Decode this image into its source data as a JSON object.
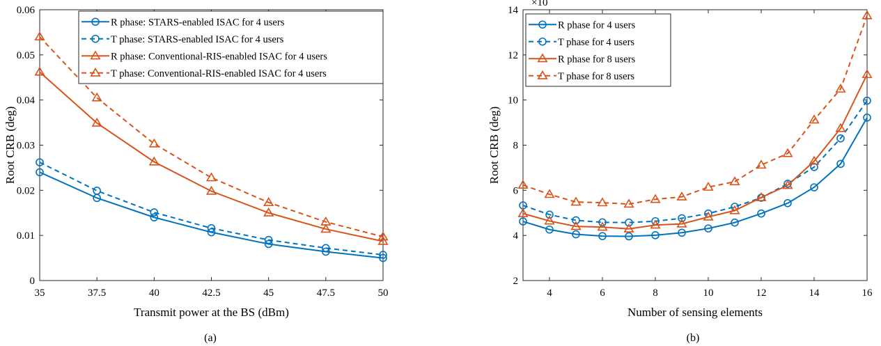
{
  "chart_data": [
    {
      "type": "line",
      "caption": "(a)",
      "xlabel": "Transmit power at the BS (dBm)",
      "ylabel": "Root CRB (deg)",
      "xlim": [
        35,
        50
      ],
      "ylim": [
        0,
        0.06
      ],
      "xticks": [
        35,
        37.5,
        40,
        42.5,
        45,
        47.5,
        50
      ],
      "xtick_labels": [
        "35",
        "37.5",
        "40",
        "42.5",
        "45",
        "47.5",
        "50"
      ],
      "yticks": [
        0,
        0.01,
        0.02,
        0.03,
        0.04,
        0.05,
        0.06
      ],
      "ytick_labels": [
        "0",
        "0.01",
        "0.02",
        "0.03",
        "0.04",
        "0.05",
        "0.06"
      ],
      "legend_position": "top-right",
      "x": [
        35,
        37.5,
        40,
        42.5,
        45,
        47.5,
        50
      ],
      "series": [
        {
          "name": "R phase: STARS-enabled ISAC for 4 users",
          "color": "#0072BD",
          "dash": "solid",
          "marker": "circle",
          "values": [
            0.024,
            0.0183,
            0.014,
            0.0107,
            0.0081,
            0.0064,
            0.005
          ]
        },
        {
          "name": "T phase: STARS-enabled ISAC for 4 users",
          "color": "#0072BD",
          "dash": "dashed",
          "marker": "circle",
          "values": [
            0.0262,
            0.0199,
            0.0151,
            0.0116,
            0.009,
            0.0072,
            0.0057
          ]
        },
        {
          "name": "R phase: Conventional-RIS-enabled ISAC for 4 users",
          "color": "#D95319",
          "dash": "solid",
          "marker": "triangle",
          "values": [
            0.0462,
            0.0349,
            0.0263,
            0.0198,
            0.015,
            0.0114,
            0.0087
          ]
        },
        {
          "name": "T phase: Conventional-RIS-enabled ISAC for 4 users",
          "color": "#D95319",
          "dash": "dashed",
          "marker": "triangle",
          "values": [
            0.054,
            0.0405,
            0.0303,
            0.0228,
            0.0173,
            0.013,
            0.0097
          ]
        }
      ]
    },
    {
      "type": "line",
      "caption": "(b)",
      "xlabel": "Number of sensing elements",
      "ylabel": "Root CRB (deg)",
      "y_exponent_label": "×10",
      "xlim": [
        3,
        16
      ],
      "ylim": [
        2,
        14
      ],
      "xticks": [
        4,
        6,
        8,
        10,
        12,
        14,
        16
      ],
      "xtick_labels": [
        "4",
        "6",
        "8",
        "10",
        "12",
        "14",
        "16"
      ],
      "yticks": [
        2,
        4,
        6,
        8,
        10,
        12,
        14
      ],
      "ytick_labels": [
        "2",
        "4",
        "6",
        "8",
        "10",
        "12",
        "14"
      ],
      "legend_position": "top-left",
      "x": [
        3,
        4,
        5,
        6,
        7,
        8,
        9,
        10,
        11,
        12,
        13,
        14,
        15,
        16
      ],
      "series": [
        {
          "name": "R phase for 4 users",
          "color": "#0072BD",
          "dash": "solid",
          "marker": "circle",
          "values": [
            4.62,
            4.26,
            4.05,
            3.97,
            3.96,
            4.01,
            4.12,
            4.31,
            4.57,
            4.97,
            5.43,
            6.13,
            7.17,
            9.22
          ]
        },
        {
          "name": "T phase for 4 users",
          "color": "#0072BD",
          "dash": "dashed",
          "marker": "circle",
          "values": [
            5.33,
            4.92,
            4.67,
            4.58,
            4.57,
            4.63,
            4.76,
            4.97,
            5.27,
            5.67,
            6.29,
            7.03,
            8.3,
            9.97
          ]
        },
        {
          "name": "R phase for 8 users",
          "color": "#D95319",
          "dash": "solid",
          "marker": "triangle",
          "values": [
            4.97,
            4.64,
            4.4,
            4.37,
            4.29,
            4.46,
            4.51,
            4.82,
            5.1,
            5.68,
            6.22,
            7.29,
            8.74,
            11.13
          ]
        },
        {
          "name": "T phase for 8 users",
          "color": "#D95319",
          "dash": "dashed",
          "marker": "triangle",
          "values": [
            6.23,
            5.82,
            5.48,
            5.45,
            5.39,
            5.6,
            5.71,
            6.14,
            6.38,
            7.12,
            7.63,
            9.12,
            10.49,
            13.74
          ]
        }
      ]
    }
  ]
}
